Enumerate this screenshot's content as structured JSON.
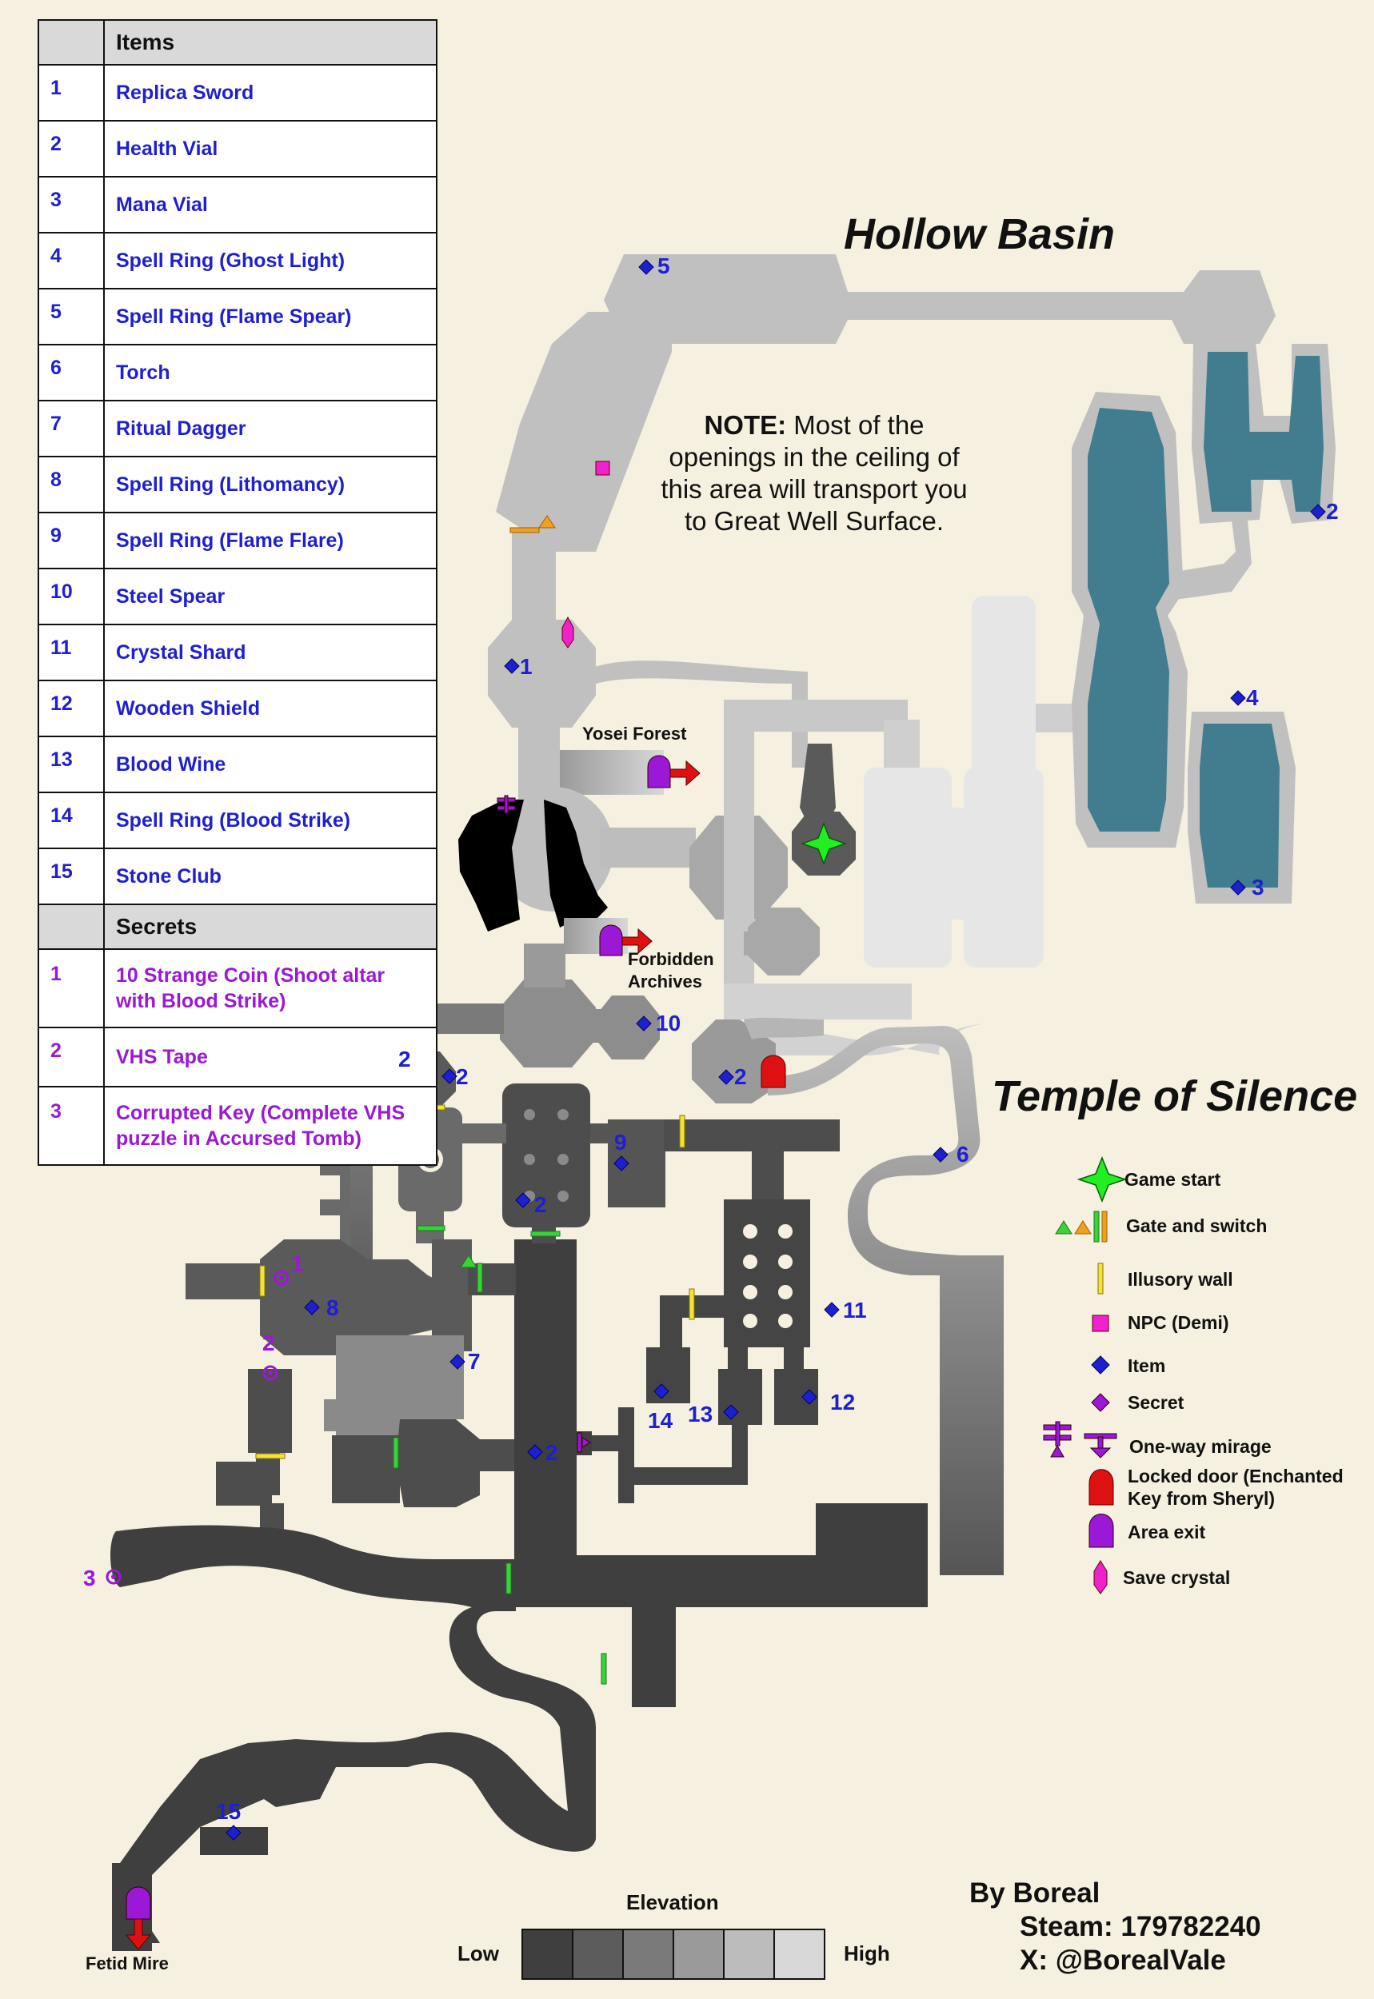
{
  "title_basin": "Hollow Basin",
  "title_temple": "Temple of Silence",
  "note_bold": "NOTE:",
  "note_text": " Most of the openings in the ceiling of this area will transport you to Great Well Surface.",
  "items_header": "Items",
  "items": [
    {
      "n": "1",
      "name": "Replica Sword"
    },
    {
      "n": "2",
      "name": "Health Vial"
    },
    {
      "n": "3",
      "name": "Mana Vial"
    },
    {
      "n": "4",
      "name": "Spell Ring (Ghost Light)"
    },
    {
      "n": "5",
      "name": "Spell Ring (Flame Spear)"
    },
    {
      "n": "6",
      "name": "Torch"
    },
    {
      "n": "7",
      "name": "Ritual Dagger"
    },
    {
      "n": "8",
      "name": "Spell Ring (Lithomancy)"
    },
    {
      "n": "9",
      "name": "Spell Ring (Flame Flare)"
    },
    {
      "n": "10",
      "name": "Steel Spear"
    },
    {
      "n": "11",
      "name": "Crystal Shard"
    },
    {
      "n": "12",
      "name": "Wooden Shield"
    },
    {
      "n": "13",
      "name": "Blood Wine"
    },
    {
      "n": "14",
      "name": "Spell Ring (Blood Strike)"
    },
    {
      "n": "15",
      "name": "Stone Club"
    }
  ],
  "secrets_header": "Secrets",
  "secrets": [
    {
      "n": "1",
      "name": "10 Strange Coin (Shoot altar with Blood Strike)"
    },
    {
      "n": "2",
      "name": "VHS Tape"
    },
    {
      "n": "3",
      "name": "Corrupted Key (Complete VHS puzzle in Accursed Tomb)"
    }
  ],
  "exits": {
    "yosei": "Yosei Forest",
    "forbidden1": "Forbidden",
    "forbidden2": "Archives",
    "fetid": "Fetid Mire"
  },
  "key": {
    "game_start": "Game start",
    "gate": "Gate and switch",
    "illusory": "Illusory wall",
    "npc": "NPC (Demi)",
    "item": "Item",
    "secret": "Secret",
    "mirage": "One-way mirage",
    "locked1": "Locked door (Enchanted",
    "locked2": "Key from Sheryl)",
    "area_exit": "Area exit",
    "save": "Save crystal"
  },
  "elevation": {
    "title": "Elevation",
    "low": "Low",
    "high": "High"
  },
  "credits": {
    "by": "By Boreal",
    "steam": "Steam: 179782240",
    "x": "X: @BorealVale"
  },
  "map_item_numbers": [
    "5",
    "2",
    "1",
    "4",
    "3",
    "10",
    "2",
    "2",
    "2",
    "9",
    "6",
    "2",
    "1",
    "8",
    "7",
    "2",
    "11",
    "14",
    "13",
    "12",
    "2",
    "3",
    "15"
  ],
  "colors": {
    "background": "#f5f0df",
    "item_blue": "#1f1fd2",
    "secret_purple": "#9a18d6",
    "water": "#427d8f",
    "npc": "#ee22cc",
    "start": "#22ee22",
    "locked": "#dd1111",
    "exit": "#9a18d6",
    "elev": [
      "#3f3f3f",
      "#5c5c5c",
      "#7a7a7a",
      "#9a9a9a",
      "#bcbcbc",
      "#d8d8d8"
    ]
  }
}
